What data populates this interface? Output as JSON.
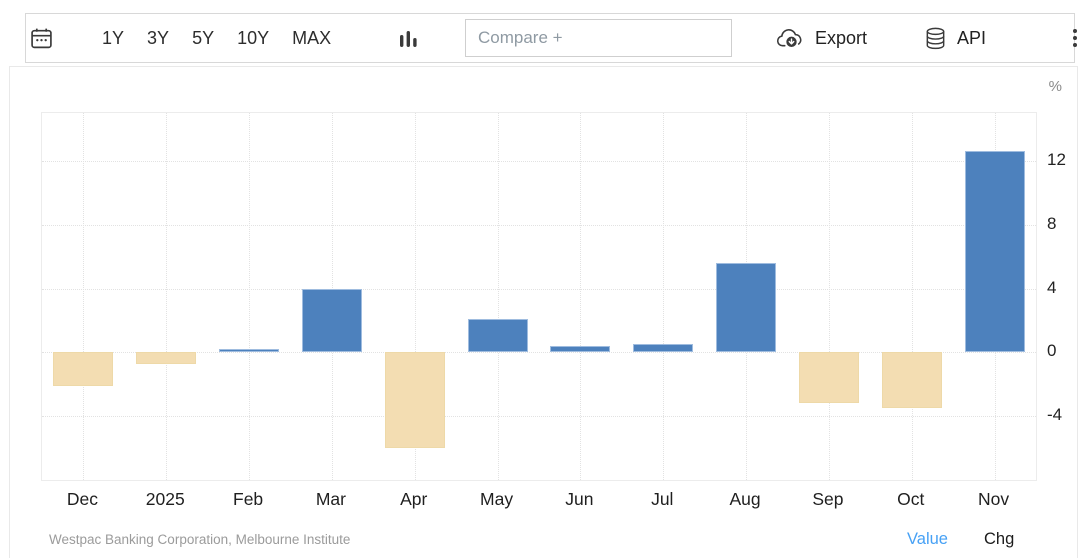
{
  "toolbar": {
    "range_buttons": [
      "1Y",
      "3Y",
      "5Y",
      "10Y",
      "MAX"
    ],
    "compare_placeholder": "Compare +",
    "export_label": "Export",
    "api_label": "API"
  },
  "chart": {
    "unit_label": "%"
  },
  "chart_data": {
    "type": "bar",
    "title": "",
    "xlabel": "",
    "ylabel": "%",
    "categories": [
      "Dec",
      "2025",
      "Feb",
      "Mar",
      "Apr",
      "May",
      "Jun",
      "Jul",
      "Aug",
      "Sep",
      "Oct",
      "Nov"
    ],
    "values": [
      -2.1,
      -0.7,
      0.2,
      4.0,
      -6.0,
      2.1,
      0.4,
      0.5,
      5.6,
      -3.2,
      -3.5,
      12.6
    ],
    "ylim": [
      -8,
      15
    ],
    "y_ticks": [
      12,
      8,
      4,
      0,
      -4
    ],
    "grid": true,
    "legend": false,
    "colors": {
      "positive": "#4d81bd",
      "positive_border": "#9fbcdf",
      "negative": "#f3ddb2",
      "negative_border": "#eed9a8"
    }
  },
  "footer": {
    "source": "Westpac Banking Corporation, Melbourne Institute",
    "value_label": "Value",
    "chg_label": "Chg",
    "value_color": "#47a1f5"
  }
}
